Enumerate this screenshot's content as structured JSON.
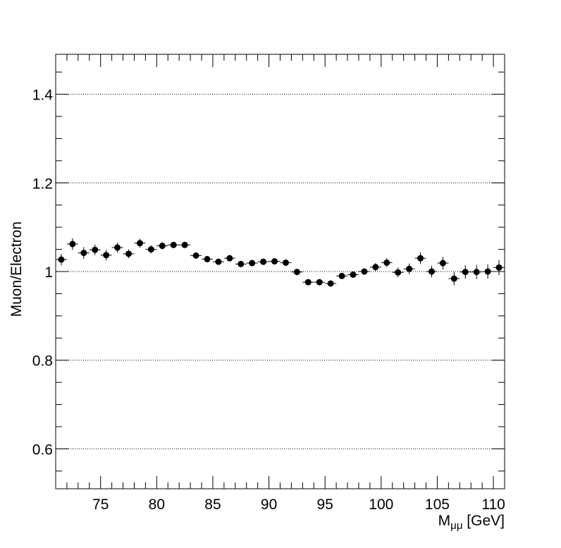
{
  "chart_data": {
    "type": "scatter",
    "title": "",
    "xlabel_main": "M",
    "xlabel_sub": "μμ",
    "xlabel_unit": " [GeV]",
    "ylabel": "Muon/Electron",
    "xlim": [
      71,
      111
    ],
    "ylim": [
      0.51,
      1.49
    ],
    "x_ticks": [
      75,
      80,
      85,
      90,
      95,
      100,
      105,
      110
    ],
    "x_tick_labels": [
      "75",
      "80",
      "85",
      "90",
      "95",
      "100",
      "105",
      "110"
    ],
    "y_ticks": [
      0.6,
      0.8,
      1.0,
      1.2,
      1.4
    ],
    "y_tick_labels": [
      "0.6",
      "0.8",
      "1",
      "1.2",
      "1.4"
    ],
    "gridlines_y": true,
    "grid_style": "dotted",
    "marker": "filled-circle",
    "color": "#000000",
    "bin_width": 1,
    "x": [
      71.5,
      72.5,
      73.5,
      74.5,
      75.5,
      76.5,
      77.5,
      78.5,
      79.5,
      80.5,
      81.5,
      82.5,
      83.5,
      84.5,
      85.5,
      86.5,
      87.5,
      88.5,
      89.5,
      90.5,
      91.5,
      92.5,
      93.5,
      94.5,
      95.5,
      96.5,
      97.5,
      98.5,
      99.5,
      100.5,
      101.5,
      102.5,
      103.5,
      104.5,
      105.5,
      106.5,
      107.5,
      108.5,
      109.5,
      110.5
    ],
    "y": [
      1.027,
      1.062,
      1.042,
      1.049,
      1.037,
      1.054,
      1.04,
      1.064,
      1.05,
      1.058,
      1.06,
      1.06,
      1.036,
      1.028,
      1.022,
      1.03,
      1.017,
      1.019,
      1.022,
      1.023,
      1.02,
      0.999,
      0.976,
      0.976,
      0.973,
      0.99,
      0.993,
      1.0,
      1.01,
      1.02,
      0.998,
      1.006,
      1.03,
      1.0,
      1.019,
      0.984,
      0.999,
      0.999,
      1.0,
      1.009
    ],
    "y_err": [
      0.013,
      0.013,
      0.013,
      0.012,
      0.012,
      0.011,
      0.01,
      0.01,
      0.009,
      0.008,
      0.007,
      0.006,
      0.005,
      0.004,
      0.004,
      0.004,
      0.003,
      0.003,
      0.003,
      0.003,
      0.003,
      0.003,
      0.003,
      0.004,
      0.004,
      0.006,
      0.006,
      0.007,
      0.009,
      0.01,
      0.011,
      0.012,
      0.013,
      0.013,
      0.014,
      0.015,
      0.015,
      0.016,
      0.016,
      0.017
    ]
  }
}
